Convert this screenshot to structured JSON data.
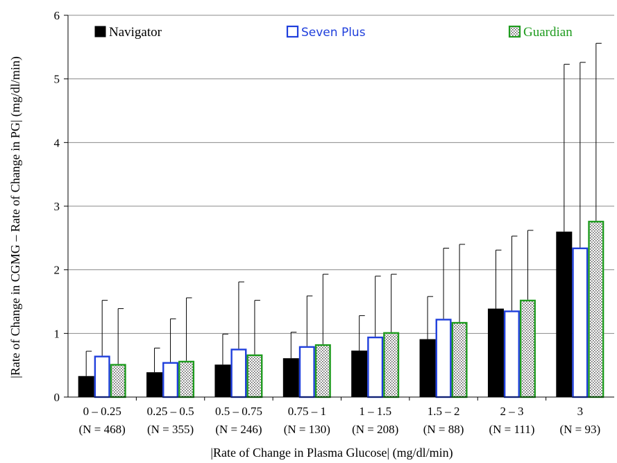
{
  "chart_data": {
    "type": "bar",
    "title": "",
    "xlabel": "|Rate of Change in Plasma Glucose| (mg/dl/min)",
    "ylabel": "|Rate of Change in CGMG – Rate of Change in PG| (mg/dl/min)",
    "ylim": [
      0,
      6
    ],
    "yticks": [
      0,
      1,
      2,
      3,
      4,
      5,
      6
    ],
    "grid": "horizontal",
    "legend_position": "top",
    "categories": [
      "0 – 0.25",
      "0.25 – 0.5",
      "0.5 – 0.75",
      "0.75 – 1",
      "1 – 1.5",
      "1.5 – 2",
      "2 – 3",
      "3"
    ],
    "category_n": [
      "(N = 468)",
      "(N = 355)",
      "(N = 246)",
      "(N = 130)",
      "(N = 208)",
      "(N = 88)",
      "(N = 111)",
      "(N = 93)"
    ],
    "series": [
      {
        "name": "Navigator",
        "color": "#000000",
        "style": "solid",
        "values": [
          0.33,
          0.39,
          0.51,
          0.61,
          0.73,
          0.91,
          1.39,
          2.6
        ],
        "error_upper": [
          0.72,
          0.77,
          0.99,
          1.02,
          1.28,
          1.58,
          2.31,
          5.23
        ]
      },
      {
        "name": "Seven Plus",
        "color": "#1f3fdc",
        "style": "outline",
        "values": [
          0.65,
          0.55,
          0.76,
          0.8,
          0.95,
          1.23,
          1.36,
          2.35
        ],
        "error_upper": [
          1.52,
          1.23,
          1.81,
          1.59,
          1.9,
          2.34,
          2.53,
          5.26
        ]
      },
      {
        "name": "Guardian",
        "color": "#1e9b1e",
        "style": "stippled",
        "values": [
          0.52,
          0.57,
          0.67,
          0.83,
          1.02,
          1.18,
          1.53,
          2.77
        ],
        "error_upper": [
          1.39,
          1.56,
          1.52,
          1.93,
          1.93,
          2.4,
          2.62,
          5.56
        ]
      }
    ]
  }
}
